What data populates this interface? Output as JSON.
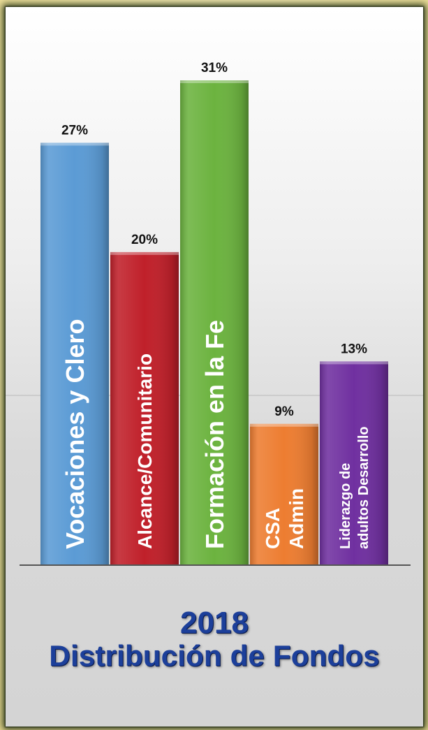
{
  "chart_data": {
    "type": "bar",
    "title": "2018",
    "subtitle": "Distribución de Fondos",
    "ylim": [
      0,
      31
    ],
    "grid": false,
    "legend": "none",
    "bars": [
      {
        "lines": [
          "Vocaciones y Clero"
        ],
        "value": 27,
        "value_label": "27%",
        "color": "#5b9bd5"
      },
      {
        "lines": [
          "Alcance/Comunitario"
        ],
        "value": 20,
        "value_label": "20%",
        "color": "#c0202a"
      },
      {
        "lines": [
          "Formación en la Fe"
        ],
        "value": 31,
        "value_label": "31%",
        "color": "#6cb33f"
      },
      {
        "lines": [
          "CSA",
          "Admin"
        ],
        "value": 9,
        "value_label": "9%",
        "color": "#ed7d31"
      },
      {
        "lines": [
          "Liderazgo de",
          "adultos Desarrollo"
        ],
        "value": 13,
        "value_label": "13%",
        "color": "#7030a0"
      }
    ]
  }
}
